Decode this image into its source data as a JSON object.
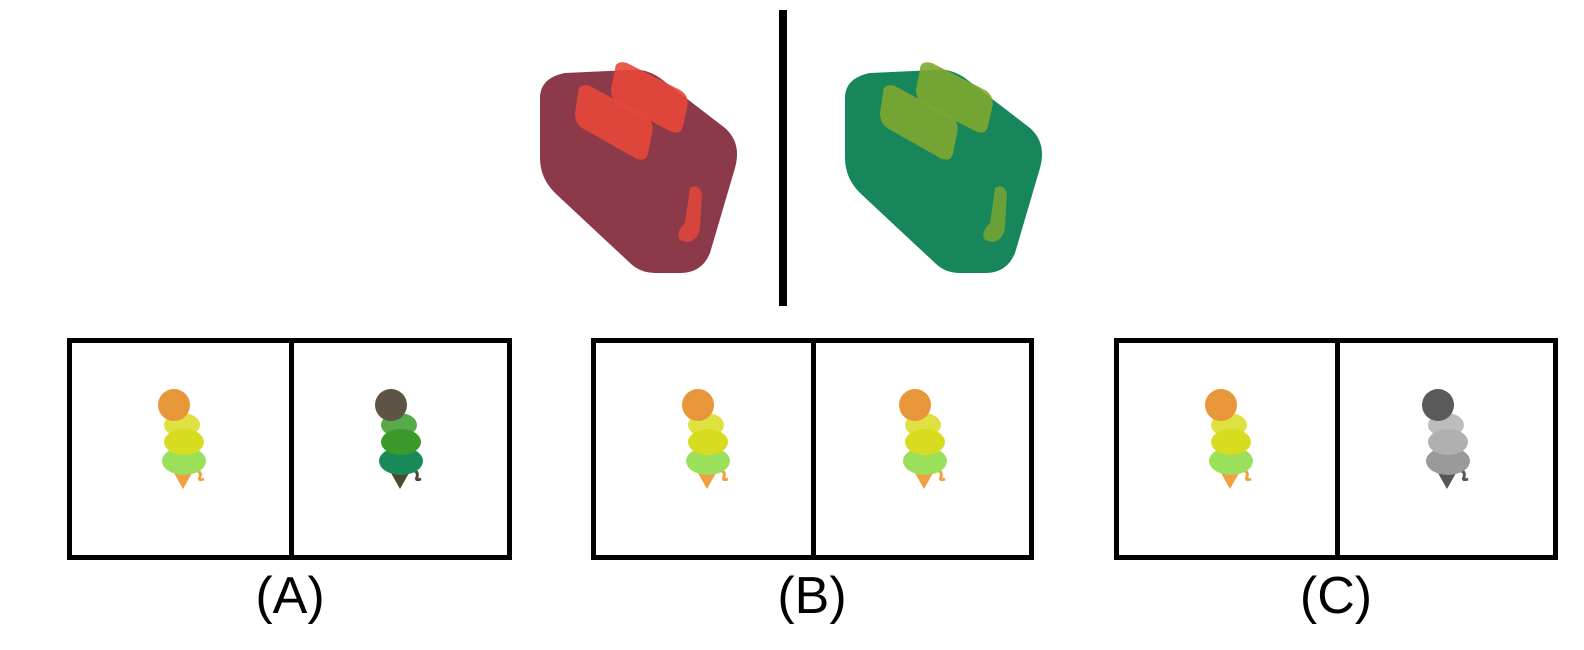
{
  "top_pair": {
    "left_object": "toaster-icon",
    "left_color": "#8c3a4a",
    "left_slot_color": "#e8483a",
    "right_object": "toaster-icon",
    "right_color": "#17865a",
    "right_slot_color": "#7ea830"
  },
  "options": [
    {
      "label": "(A)",
      "left": {
        "scoop_top": "#e8963a",
        "scoop_mid": "#d8dc20",
        "scoop_bottom": "#9ae05a",
        "cone": "#f0a040"
      },
      "right": {
        "scoop_top": "#5e5444",
        "scoop_mid": "#3a9a2a",
        "scoop_bottom": "#1a8a5a",
        "cone": "#4a4a30"
      }
    },
    {
      "label": "(B)",
      "left": {
        "scoop_top": "#e8963a",
        "scoop_mid": "#d8dc20",
        "scoop_bottom": "#9ae05a",
        "cone": "#f0a040"
      },
      "right": {
        "scoop_top": "#e8963a",
        "scoop_mid": "#d8dc20",
        "scoop_bottom": "#9ae05a",
        "cone": "#f0a040"
      }
    },
    {
      "label": "(C)",
      "left": {
        "scoop_top": "#e8963a",
        "scoop_mid": "#d8dc20",
        "scoop_bottom": "#9ae05a",
        "cone": "#f0a040"
      },
      "right": {
        "scoop_top": "#5a5a5a",
        "scoop_mid": "#b0b0b0",
        "scoop_bottom": "#9a9a9a",
        "cone": "#555555"
      }
    }
  ]
}
